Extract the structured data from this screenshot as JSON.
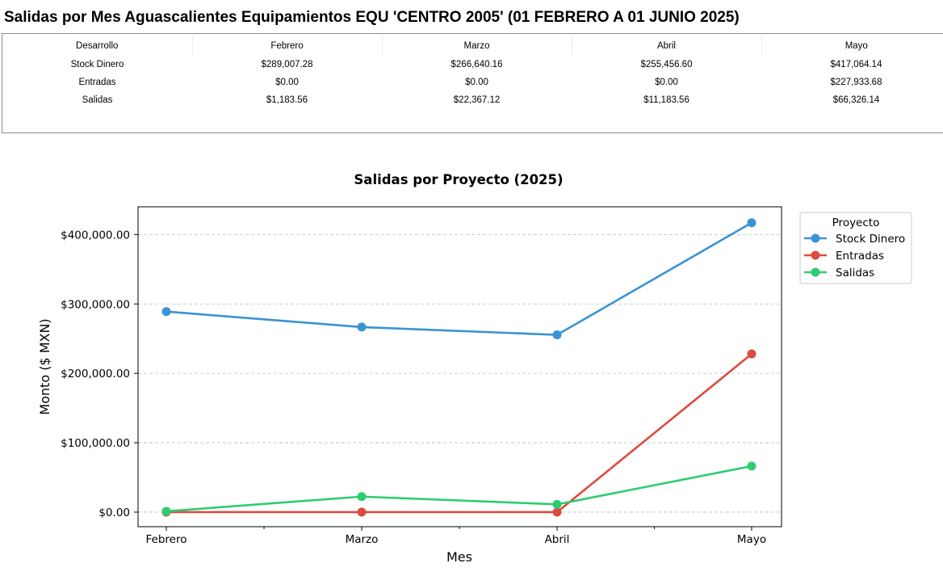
{
  "page": {
    "title": "Salidas por Mes Aguascalientes Equipamientos EQU 'CENTRO 2005' (01 FEBRERO A 01 JUNIO 2025)"
  },
  "table": {
    "headers": [
      "Desarrollo",
      "Febrero",
      "Marzo",
      "Abril",
      "Mayo"
    ],
    "rows": [
      [
        "Stock Dinero",
        "$289,007.28",
        "$266,640.16",
        "$255,456.60",
        "$417,064.14"
      ],
      [
        "Entradas",
        "$0.00",
        "$0.00",
        "$0.00",
        "$227,933.68"
      ],
      [
        "Salidas",
        "$1,183.56",
        "$22,367.12",
        "$11,183.56",
        "$66,326.14"
      ]
    ]
  },
  "chart_data": {
    "type": "line",
    "title": "Salidas por Proyecto (2025)",
    "xlabel": "Mes",
    "ylabel": "Monto ($ MXN)",
    "categories": [
      "Febrero",
      "Marzo",
      "Abril",
      "Mayo"
    ],
    "ylim": [
      -21000,
      440000
    ],
    "yticks": [
      0,
      100000,
      200000,
      300000,
      400000
    ],
    "ytick_labels": [
      "$0.00",
      "$100,000.00",
      "$200,000.00",
      "$300,000.00",
      "$400,000.00"
    ],
    "grid": "horizontal-dashed",
    "legend": {
      "title": "Proyecto",
      "placement": "outside-top-right"
    },
    "series": [
      {
        "name": "Stock Dinero",
        "color": "#3a93d3",
        "values": [
          289007.28,
          266640.16,
          255456.6,
          417064.14
        ]
      },
      {
        "name": "Entradas",
        "color": "#dc4b3f",
        "values": [
          0.0,
          0.0,
          0.0,
          227933.68
        ]
      },
      {
        "name": "Salidas",
        "color": "#2ecc71",
        "values": [
          1183.56,
          22367.12,
          11183.56,
          66326.14
        ]
      }
    ]
  }
}
